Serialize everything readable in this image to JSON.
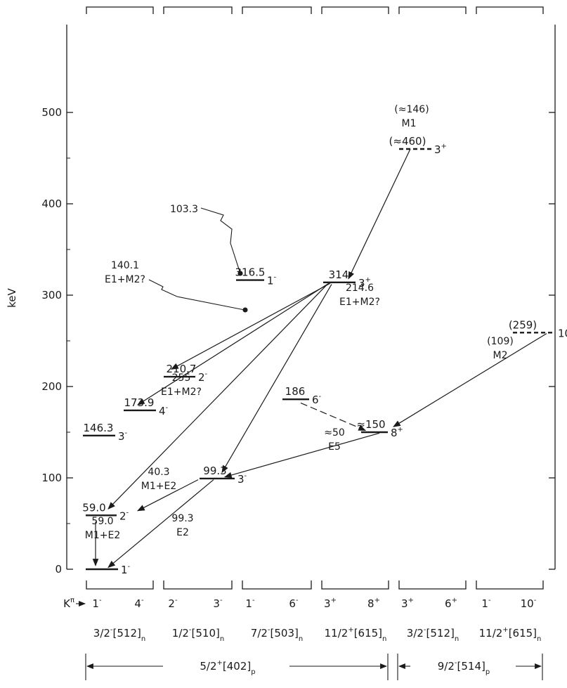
{
  "axis": {
    "label": "keV",
    "ticks": [
      "0",
      "100",
      "200",
      "300",
      "400",
      "500"
    ],
    "range": [
      0,
      500
    ]
  },
  "levels": [
    {
      "id": "l0",
      "energy": 0,
      "label": "",
      "spin": "1",
      "parity": "-",
      "column": 0
    },
    {
      "id": "l59",
      "energy": 59.0,
      "label": "59.0",
      "spin": "2",
      "parity": "-",
      "column": 0
    },
    {
      "id": "l146",
      "energy": 146.3,
      "label": "146.3",
      "spin": "3",
      "parity": "-",
      "column": 0
    },
    {
      "id": "l174",
      "energy": 173.9,
      "label": "173.9",
      "spin": "4",
      "parity": "-",
      "column": 1
    },
    {
      "id": "l211",
      "energy": 210.7,
      "label": "210.7",
      "spin": "2",
      "parity": "-",
      "column": 1
    },
    {
      "id": "l99",
      "energy": 99.3,
      "label": "99.3",
      "spin": "3",
      "parity": "-",
      "column": 1
    },
    {
      "id": "l317",
      "energy": 316.5,
      "label": "316.5",
      "spin": "1",
      "parity": "-",
      "column": 2
    },
    {
      "id": "l186",
      "energy": 186,
      "label": "186",
      "spin": "6",
      "parity": "-",
      "column": 3
    },
    {
      "id": "l314",
      "energy": 314,
      "label": "314",
      "spin": "3",
      "parity": "+",
      "column": 3
    },
    {
      "id": "l150",
      "energy": 150,
      "label": "≈150",
      "spin": "8",
      "parity": "+",
      "column": 3
    },
    {
      "id": "l460",
      "energy": 460,
      "label": "(≈460)",
      "spin": "3",
      "parity": "+",
      "column": 4,
      "dashed": true
    },
    {
      "id": "l259",
      "energy": 259,
      "label": "(259)",
      "spin": "10",
      "parity": "-",
      "column": 5,
      "dashed": true
    }
  ],
  "transitions": [
    {
      "from": "l460",
      "to": "l314",
      "energy": "(≈146)",
      "type": "M1"
    },
    {
      "from": "l314",
      "to": "l211",
      "energy": "103.3",
      "type": ""
    },
    {
      "from": "l314",
      "to": "l174",
      "energy": "140.1",
      "type": "E1+M2?"
    },
    {
      "from": "l314",
      "to": "l59",
      "energy": "255",
      "type": "E1+M2?"
    },
    {
      "from": "l314",
      "to": "l99",
      "energy": "214.6",
      "type": "E1+M2?"
    },
    {
      "from": "l259",
      "to": "l150",
      "energy": "(109)",
      "type": "M2"
    },
    {
      "from": "l186",
      "to": "l150",
      "energy": "",
      "type": "",
      "dashed": true
    },
    {
      "from": "l150",
      "to": "l99",
      "energy": "≈50",
      "type": "E5"
    },
    {
      "from": "l99",
      "to": "l59",
      "energy": "40.3",
      "type": "M1+E2"
    },
    {
      "from": "l99",
      "to": "l0",
      "energy": "99.3",
      "type": "E2"
    },
    {
      "from": "l59",
      "to": "l0",
      "energy": "59.0",
      "type": "M1+E2"
    }
  ],
  "bands": {
    "k_label": "K",
    "k_sup": "π",
    "k_pairs": [
      [
        "1",
        "-",
        "4",
        "-"
      ],
      [
        "2",
        "-",
        "3",
        "-"
      ],
      [
        "1",
        "-",
        "6",
        "-"
      ],
      [
        "3",
        "+",
        "8",
        "+"
      ],
      [
        "3",
        "+",
        "6",
        "+"
      ],
      [
        "1",
        "-",
        "10",
        "-"
      ]
    ],
    "configs": [
      {
        "main": "3/2",
        "par": "-",
        "orbit": "[512]",
        "sub": "n"
      },
      {
        "main": "1/2",
        "par": "-",
        "orbit": "[510]",
        "sub": "n"
      },
      {
        "main": "7/2",
        "par": "-",
        "orbit": "[503]",
        "sub": "n"
      },
      {
        "main": "11/2",
        "par": "+",
        "orbit": "[615]",
        "sub": "n"
      },
      {
        "main": "3/2",
        "par": "-",
        "orbit": "[512]",
        "sub": "n"
      },
      {
        "main": "11/2",
        "par": "+",
        "orbit": "[615]",
        "sub": "n"
      }
    ],
    "proton_left": {
      "main": "5/2",
      "par": "+",
      "orbit": "[402]",
      "sub": "p"
    },
    "proton_right": {
      "main": "9/2",
      "par": "-",
      "orbit": "[514]",
      "sub": "p"
    }
  }
}
